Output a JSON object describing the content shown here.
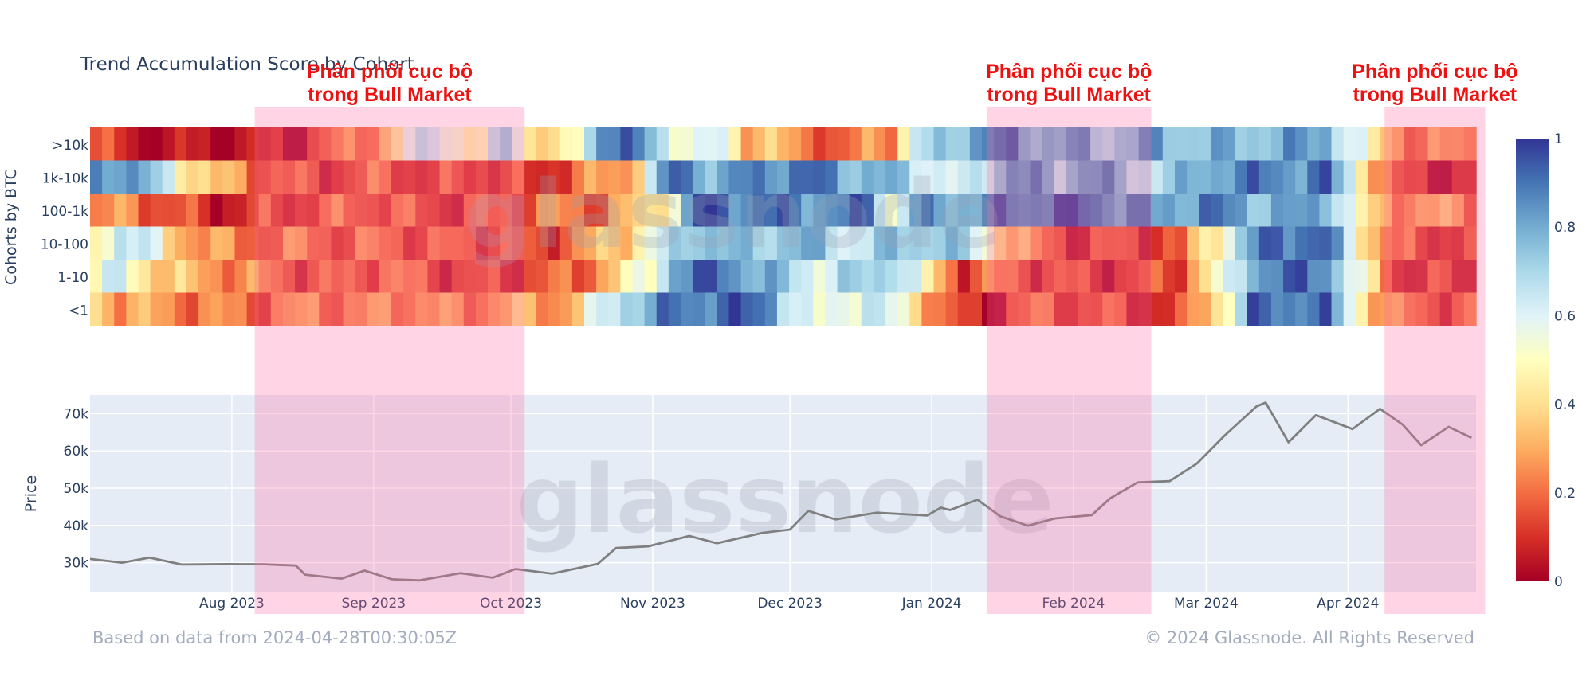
{
  "chart_data": [
    {
      "type": "heatmap",
      "title": "Trend Accumulation Score by Cohort",
      "ylabel": "Cohorts by BTC",
      "cohorts": [
        ">10k",
        "1k-10k",
        "100-1k",
        "10-100",
        "1-10",
        "<1"
      ],
      "x_range": [
        "2023-07-03",
        "2024-04-28"
      ],
      "colorbar": {
        "ticks": [
          "0",
          "0.2",
          "0.4",
          "0.6",
          "0.8",
          "1"
        ],
        "range": [
          0,
          1
        ]
      },
      "colorscale": [
        "#a50026",
        "#d73027",
        "#f46d43",
        "#fdae61",
        "#fee090",
        "#ffffbf",
        "#e0f3f8",
        "#abd9e9",
        "#74add1",
        "#4575b4",
        "#313695"
      ],
      "rows": {
        ">10k": [
          [
            0,
            0.15
          ],
          [
            3,
            0.04
          ],
          [
            10,
            0.03
          ],
          [
            16,
            0.05
          ],
          [
            20,
            0.18
          ],
          [
            24,
            0.32
          ],
          [
            28,
            0.7
          ],
          [
            32,
            0.4
          ],
          [
            34,
            0.8
          ],
          [
            36,
            0.45
          ],
          [
            38,
            0.3
          ],
          [
            40,
            0.55
          ],
          [
            42,
            0.92
          ],
          [
            46,
            0.8
          ],
          [
            48,
            0.6
          ],
          [
            50,
            0.5
          ],
          [
            52,
            0.62
          ],
          [
            54,
            0.35
          ],
          [
            60,
            0.22
          ],
          [
            62,
            0.1
          ],
          [
            64,
            0.28
          ],
          [
            66,
            0.3
          ],
          [
            68,
            0.6
          ],
          [
            72,
            0.82
          ],
          [
            76,
            0.88
          ],
          [
            80,
            0.78
          ],
          [
            82,
            0.8
          ],
          [
            84,
            0.75
          ],
          [
            88,
            0.8
          ],
          [
            92,
            0.75
          ],
          [
            100,
            0.8
          ],
          [
            102,
            0.84
          ],
          [
            106,
            0.4
          ],
          [
            110,
            0.2
          ],
          [
            114,
            0.25
          ]
        ],
        "1k-10k": [
          [
            0,
            0.85
          ],
          [
            2,
            0.9
          ],
          [
            6,
            0.6
          ],
          [
            8,
            0.45
          ],
          [
            10,
            0.3
          ],
          [
            14,
            0.2
          ],
          [
            18,
            0.12
          ],
          [
            24,
            0.18
          ],
          [
            28,
            0.1
          ],
          [
            32,
            0.16
          ],
          [
            36,
            0.08
          ],
          [
            40,
            0.2
          ],
          [
            44,
            0.3
          ],
          [
            48,
            0.92
          ],
          [
            52,
            0.78
          ],
          [
            56,
            0.9
          ],
          [
            60,
            0.88
          ],
          [
            64,
            0.78
          ],
          [
            68,
            0.7
          ],
          [
            72,
            0.55
          ],
          [
            76,
            0.88
          ],
          [
            80,
            0.72
          ],
          [
            82,
            0.88
          ],
          [
            86,
            0.7
          ],
          [
            90,
            0.72
          ],
          [
            94,
            0.88
          ],
          [
            98,
            0.86
          ],
          [
            102,
            0.9
          ],
          [
            106,
            0.35
          ],
          [
            108,
            0.1
          ],
          [
            114,
            0.05
          ]
        ],
        "100-1k": [
          [
            0,
            0.2
          ],
          [
            3,
            0.25
          ],
          [
            6,
            0.15
          ],
          [
            10,
            0.08
          ],
          [
            14,
            0.12
          ],
          [
            18,
            0.15
          ],
          [
            22,
            0.2
          ],
          [
            26,
            0.15
          ],
          [
            30,
            0.12
          ],
          [
            34,
            0.18
          ],
          [
            38,
            0.22
          ],
          [
            42,
            0.2
          ],
          [
            46,
            0.38
          ],
          [
            48,
            0.6
          ],
          [
            50,
            0.95
          ],
          [
            54,
            0.9
          ],
          [
            58,
            0.88
          ],
          [
            62,
            0.85
          ],
          [
            64,
            0.92
          ],
          [
            66,
            0.55
          ],
          [
            68,
            0.8
          ],
          [
            72,
            0.82
          ],
          [
            76,
            0.88
          ],
          [
            80,
            0.95
          ],
          [
            84,
            0.9
          ],
          [
            88,
            0.8
          ],
          [
            92,
            0.88
          ],
          [
            96,
            0.8
          ],
          [
            100,
            0.78
          ],
          [
            102,
            0.85
          ],
          [
            106,
            0.3
          ],
          [
            110,
            0.28
          ],
          [
            114,
            0.25
          ]
        ],
        "10-100": [
          [
            0,
            0.5
          ],
          [
            2,
            0.7
          ],
          [
            4,
            0.6
          ],
          [
            6,
            0.4
          ],
          [
            8,
            0.3
          ],
          [
            12,
            0.2
          ],
          [
            16,
            0.22
          ],
          [
            20,
            0.18
          ],
          [
            24,
            0.2
          ],
          [
            28,
            0.15
          ],
          [
            32,
            0.18
          ],
          [
            36,
            0.12
          ],
          [
            40,
            0.22
          ],
          [
            44,
            0.4
          ],
          [
            46,
            0.55
          ],
          [
            48,
            0.65
          ],
          [
            50,
            0.82
          ],
          [
            54,
            0.7
          ],
          [
            58,
            0.8
          ],
          [
            62,
            0.65
          ],
          [
            66,
            0.72
          ],
          [
            70,
            0.78
          ],
          [
            74,
            0.55
          ],
          [
            76,
            0.35
          ],
          [
            78,
            0.2
          ],
          [
            82,
            0.1
          ],
          [
            86,
            0.15
          ],
          [
            90,
            0.12
          ],
          [
            92,
            0.45
          ],
          [
            94,
            0.6
          ],
          [
            96,
            0.8
          ],
          [
            98,
            0.95
          ],
          [
            102,
            0.9
          ],
          [
            106,
            0.35
          ],
          [
            108,
            0.15
          ],
          [
            114,
            0.12
          ]
        ],
        "1-10": [
          [
            0,
            0.5
          ],
          [
            2,
            0.6
          ],
          [
            4,
            0.45
          ],
          [
            6,
            0.35
          ],
          [
            8,
            0.3
          ],
          [
            12,
            0.25
          ],
          [
            16,
            0.18
          ],
          [
            20,
            0.15
          ],
          [
            24,
            0.22
          ],
          [
            28,
            0.15
          ],
          [
            32,
            0.1
          ],
          [
            36,
            0.15
          ],
          [
            40,
            0.18
          ],
          [
            42,
            0.3
          ],
          [
            44,
            0.42
          ],
          [
            46,
            0.55
          ],
          [
            48,
            0.85
          ],
          [
            52,
            0.92
          ],
          [
            56,
            0.75
          ],
          [
            60,
            0.62
          ],
          [
            64,
            0.7
          ],
          [
            66,
            0.78
          ],
          [
            68,
            0.55
          ],
          [
            70,
            0.3
          ],
          [
            72,
            0.15
          ],
          [
            74,
            0.2
          ],
          [
            78,
            0.15
          ],
          [
            82,
            0.12
          ],
          [
            86,
            0.1
          ],
          [
            90,
            0.18
          ],
          [
            92,
            0.4
          ],
          [
            94,
            0.55
          ],
          [
            96,
            0.85
          ],
          [
            100,
            0.9
          ],
          [
            102,
            0.9
          ],
          [
            106,
            0.35
          ],
          [
            108,
            0.12
          ],
          [
            114,
            0.08
          ]
        ],
        "<1": [
          [
            0,
            0.4
          ],
          [
            2,
            0.3
          ],
          [
            6,
            0.25
          ],
          [
            10,
            0.22
          ],
          [
            14,
            0.2
          ],
          [
            18,
            0.25
          ],
          [
            22,
            0.22
          ],
          [
            26,
            0.28
          ],
          [
            30,
            0.22
          ],
          [
            34,
            0.3
          ],
          [
            38,
            0.28
          ],
          [
            40,
            0.35
          ],
          [
            42,
            0.6
          ],
          [
            44,
            0.75
          ],
          [
            46,
            0.8
          ],
          [
            48,
            0.88
          ],
          [
            52,
            0.92
          ],
          [
            56,
            0.9
          ],
          [
            58,
            0.6
          ],
          [
            60,
            0.5
          ],
          [
            62,
            0.62
          ],
          [
            64,
            0.65
          ],
          [
            66,
            0.55
          ],
          [
            68,
            0.45
          ],
          [
            70,
            0.2
          ],
          [
            72,
            0.08
          ],
          [
            74,
            0.05
          ],
          [
            76,
            0.15
          ],
          [
            78,
            0.18
          ],
          [
            82,
            0.15
          ],
          [
            86,
            0.12
          ],
          [
            90,
            0.1
          ],
          [
            92,
            0.35
          ],
          [
            94,
            0.55
          ],
          [
            96,
            0.88
          ],
          [
            100,
            0.92
          ],
          [
            102,
            0.88
          ],
          [
            106,
            0.35
          ],
          [
            108,
            0.2
          ],
          [
            114,
            0.15
          ]
        ]
      }
    },
    {
      "type": "line",
      "ylabel": "Price",
      "x_ticks": [
        "Aug 2023",
        "Sep 2023",
        "Oct 2023",
        "Nov 2023",
        "Dec 2023",
        "Jan 2024",
        "Feb 2024",
        "Mar 2024",
        "Apr 2024"
      ],
      "y_ticks": [
        "30k",
        "40k",
        "50k",
        "60k",
        "70k"
      ],
      "ylim": [
        22000,
        75000
      ],
      "grid": true,
      "series": [
        {
          "points": [
            [
              "2023-07-01",
              31000
            ],
            [
              "2023-07-08",
              30200
            ],
            [
              "2023-07-14",
              31000
            ],
            [
              "2023-07-21",
              29900
            ],
            [
              "2023-07-31",
              29300
            ],
            [
              "2023-08-08",
              29700
            ],
            [
              "2023-08-15",
              29300
            ],
            [
              "2023-08-17",
              26500
            ],
            [
              "2023-08-25",
              26100
            ],
            [
              "2023-08-30",
              27500
            ],
            [
              "2023-09-05",
              25800
            ],
            [
              "2023-09-11",
              25200
            ],
            [
              "2023-09-20",
              27000
            ],
            [
              "2023-09-27",
              26300
            ],
            [
              "2023-10-02",
              27900
            ],
            [
              "2023-10-10",
              27400
            ],
            [
              "2023-10-20",
              29500
            ],
            [
              "2023-10-24",
              33900
            ],
            [
              "2023-10-31",
              34600
            ],
            [
              "2023-11-09",
              36800
            ],
            [
              "2023-11-15",
              35600
            ],
            [
              "2023-11-25",
              37700
            ],
            [
              "2023-12-01",
              39000
            ],
            [
              "2023-12-05",
              44000
            ],
            [
              "2023-12-11",
              41300
            ],
            [
              "2023-12-20",
              43800
            ],
            [
              "2023-12-31",
              42300
            ],
            [
              "2024-01-03",
              45000
            ],
            [
              "2024-01-05",
              44100
            ],
            [
              "2024-01-11",
              46700
            ],
            [
              "2024-01-16",
              42800
            ],
            [
              "2024-01-22",
              39500
            ],
            [
              "2024-01-28",
              42200
            ],
            [
              "2024-02-05",
              42600
            ],
            [
              "2024-02-09",
              47200
            ],
            [
              "2024-02-15",
              51800
            ],
            [
              "2024-02-22",
              51500
            ],
            [
              "2024-02-28",
              57000
            ],
            [
              "2024-03-05",
              63800
            ],
            [
              "2024-03-12",
              72000
            ],
            [
              "2024-03-14",
              73100
            ],
            [
              "2024-03-19",
              62000
            ],
            [
              "2024-03-25",
              70000
            ],
            [
              "2024-04-02",
              65500
            ],
            [
              "2024-04-08",
              71500
            ],
            [
              "2024-04-13",
              67000
            ],
            [
              "2024-04-17",
              61300
            ],
            [
              "2024-04-23",
              66800
            ],
            [
              "2024-04-28",
              63500
            ]
          ]
        }
      ]
    }
  ],
  "annotations": [
    {
      "line1": "Phân phối cục bộ",
      "line2": "trong Bull Market",
      "start": "2023-08-06",
      "end": "2023-10-04"
    },
    {
      "line1": "Phân phối cục bộ",
      "line2": "trong Bull Market",
      "start": "2024-01-13",
      "end": "2024-02-18"
    },
    {
      "line1": "Phân phối cục bộ",
      "line2": "trong Bull Market",
      "start": "2024-04-09",
      "end": "2024-05-01"
    }
  ],
  "watermark": "glassnode",
  "footer": {
    "left": "Based on data from 2024-04-28T00:30:05Z",
    "right": "© 2024 Glassnode. All Rights Reserved"
  },
  "colors": {
    "band": "#ff69a0",
    "price_line": "#7f7f7f",
    "plot_bg": "#e5ecf6",
    "annotation_text": "#ee1111",
    "title_text": "#2a3f5f"
  }
}
